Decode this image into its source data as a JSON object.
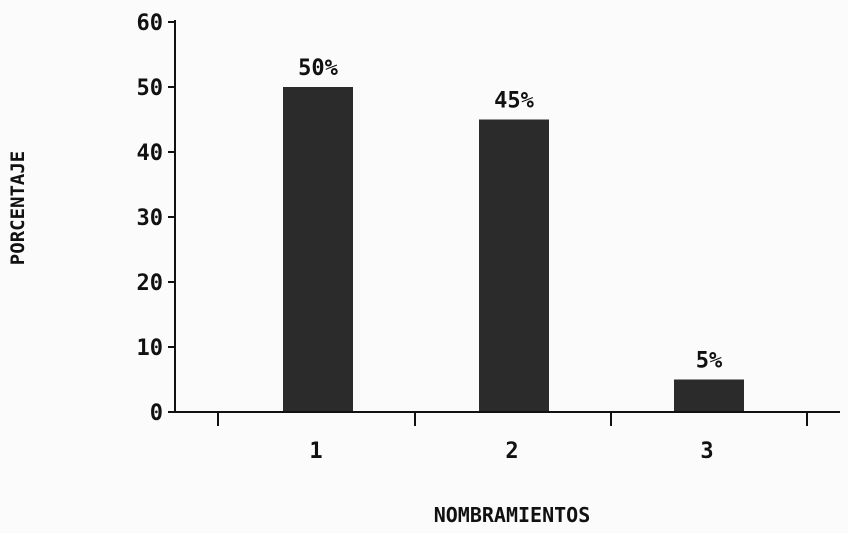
{
  "chart_data": {
    "type": "bar",
    "categories": [
      "1",
      "2",
      "3"
    ],
    "values": [
      50,
      45,
      5
    ],
    "data_labels": [
      "50%",
      "45%",
      "5%"
    ],
    "title": "",
    "xlabel": "NOMBRAMIENTOS",
    "ylabel": "PORCENTAJE",
    "ylim": [
      0,
      60
    ],
    "yticks": [
      "0",
      "10",
      "20",
      "30",
      "40",
      "50",
      "60"
    ],
    "grid": false,
    "bar_color": "#2b2b2b",
    "axis_color": "#111111"
  }
}
